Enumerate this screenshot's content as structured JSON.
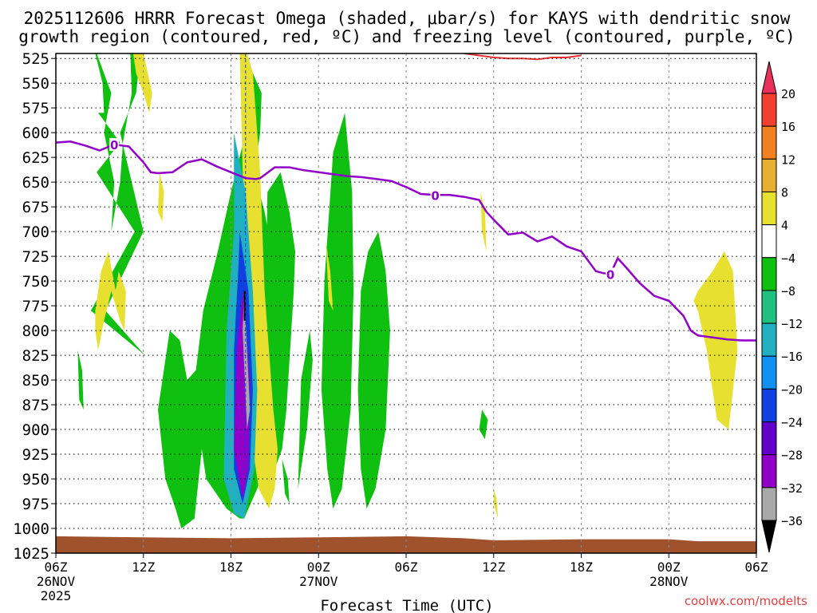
{
  "chart_data": {
    "type": "heatmap",
    "title_line1": "2025112606 HRRR Forecast Omega (shaded, μbar/s) for KAYS with dendritic snow",
    "title_line2": "growth region (contoured, red, ºC) and freezing level (contoured, purple, ºC)",
    "xlabel": "Forecast Time (UTC)",
    "credit": "coolwx.com/modelts",
    "y_ticks": [
      525,
      550,
      575,
      600,
      625,
      650,
      675,
      700,
      725,
      750,
      775,
      800,
      825,
      850,
      875,
      900,
      925,
      950,
      975,
      1000,
      1025
    ],
    "ylim": [
      520,
      1025
    ],
    "xlim": [
      0,
      48
    ],
    "x_ticks": [
      {
        "hour": 0,
        "label": "06Z",
        "date": "26NOV",
        "year": "2025"
      },
      {
        "hour": 6,
        "label": "12Z",
        "date": "",
        "year": ""
      },
      {
        "hour": 12,
        "label": "18Z",
        "date": "",
        "year": ""
      },
      {
        "hour": 18,
        "label": "00Z",
        "date": "27NOV",
        "year": ""
      },
      {
        "hour": 24,
        "label": "06Z",
        "date": "",
        "year": ""
      },
      {
        "hour": 30,
        "label": "12Z",
        "date": "",
        "year": ""
      },
      {
        "hour": 36,
        "label": "18Z",
        "date": "",
        "year": ""
      },
      {
        "hour": 42,
        "label": "00Z",
        "date": "28NOV",
        "year": ""
      },
      {
        "hour": 48,
        "label": "06Z",
        "date": "",
        "year": ""
      }
    ],
    "colorbar": {
      "labels": [
        "20",
        "16",
        "12",
        "8",
        "4",
        "−4",
        "−8",
        "−12",
        "−16",
        "−20",
        "−24",
        "−28",
        "−32",
        "−36"
      ],
      "colors": [
        "#e8305a",
        "#f04030",
        "#f08020",
        "#e8b030",
        "#e8e030",
        "#ffffff",
        "#10c010",
        "#20c080",
        "#20b0c0",
        "#1090f0",
        "#1040e0",
        "#6000c8",
        "#9000c8",
        "#a8a8a8",
        "#000000"
      ]
    },
    "freezing_level": {
      "label": "0",
      "label_hours": [
        4,
        26,
        38
      ],
      "points": [
        [
          0,
          610
        ],
        [
          1,
          609
        ],
        [
          2,
          613
        ],
        [
          3,
          618
        ],
        [
          4,
          612
        ],
        [
          5,
          614
        ],
        [
          6,
          630
        ],
        [
          6.5,
          640
        ],
        [
          7,
          641
        ],
        [
          8,
          640
        ],
        [
          9,
          630
        ],
        [
          10,
          627
        ],
        [
          11,
          634
        ],
        [
          12,
          640
        ],
        [
          13,
          646
        ],
        [
          13.7,
          647
        ],
        [
          14,
          646
        ],
        [
          15,
          635
        ],
        [
          16,
          635
        ],
        [
          17,
          638
        ],
        [
          18,
          640
        ],
        [
          19,
          642
        ],
        [
          20,
          644
        ],
        [
          21,
          645
        ],
        [
          22,
          647
        ],
        [
          23,
          649
        ],
        [
          24,
          655
        ],
        [
          25,
          662
        ],
        [
          26,
          663
        ],
        [
          27,
          663
        ],
        [
          28,
          665
        ],
        [
          29,
          668
        ],
        [
          29.5,
          680
        ],
        [
          30,
          688
        ],
        [
          31,
          703
        ],
        [
          32,
          701
        ],
        [
          33,
          710
        ],
        [
          34,
          705
        ],
        [
          35,
          715
        ],
        [
          36,
          720
        ],
        [
          37,
          740
        ],
        [
          37.5,
          742
        ],
        [
          38,
          743
        ],
        [
          38.5,
          727
        ],
        [
          39,
          735
        ],
        [
          40,
          752
        ],
        [
          41,
          765
        ],
        [
          42,
          770
        ],
        [
          43,
          785
        ],
        [
          43.5,
          800
        ],
        [
          44,
          805
        ],
        [
          45,
          807
        ],
        [
          46,
          809
        ],
        [
          47,
          810
        ],
        [
          48,
          810
        ]
      ]
    },
    "dgz_contour": {
      "points": [
        [
          28,
          520
        ],
        [
          29,
          522
        ],
        [
          30,
          524
        ],
        [
          31,
          525
        ],
        [
          32,
          525
        ],
        [
          33,
          526
        ],
        [
          34,
          524
        ],
        [
          35,
          524
        ],
        [
          36,
          522
        ]
      ]
    },
    "omega_regions": [
      {
        "value": -6,
        "hours": [
          [
            2.7,
            3.2
          ],
          [
            3.3,
            2.9
          ],
          [
            4.4,
            2.8
          ],
          [
            5.4,
            2.4
          ],
          [
            6.1,
            3.4
          ],
          [
            6.0,
            4.4
          ],
          [
            5.5,
            5.8
          ],
          [
            5.1,
            5.2
          ],
          [
            4.6,
            4.4
          ],
          [
            3.8,
            4.0
          ],
          [
            3.3,
            3.8
          ],
          [
            2.8,
            3.6
          ]
        ],
        "pres": [
          [
            520,
            550
          ],
          [
            580,
            580
          ],
          [
            610,
            640
          ],
          [
            700,
            780
          ],
          [
            825,
            780
          ],
          [
            700,
            600
          ],
          [
            560,
            520
          ],
          [
            520,
            560
          ],
          [
            610,
            650
          ],
          [
            700,
            650
          ],
          [
            600,
            560
          ],
          [
            520,
            520
          ]
        ]
      },
      {
        "value": -6,
        "hours": [
          [
            7.0,
            7.5
          ],
          [
            7.8,
            8.5
          ],
          [
            9.0,
            9.6
          ],
          [
            10.1,
            11.1
          ],
          [
            12.0,
            13.0
          ],
          [
            12.6,
            13.1
          ],
          [
            13.5,
            14.1
          ],
          [
            14.0,
            13.6
          ],
          [
            14.3,
            14.8
          ],
          [
            14.8,
            15.4
          ],
          [
            15.0,
            14.5
          ],
          [
            13.8,
            12.9
          ],
          [
            12.6,
            11.7
          ],
          [
            10.3,
            10.0
          ],
          [
            9.5,
            8.6
          ],
          [
            8.2,
            7.5
          ]
        ],
        "pres": [
          [
            880,
            830
          ],
          [
            800,
            810
          ],
          [
            850,
            840
          ],
          [
            780,
            720
          ],
          [
            660,
            600
          ],
          [
            520,
            520
          ],
          [
            540,
            560
          ],
          [
            600,
            640
          ],
          [
            680,
            720
          ],
          [
            760,
            800
          ],
          [
            870,
            930
          ],
          [
            960,
            990
          ],
          [
            990,
            980
          ],
          [
            950,
            920
          ],
          [
            990,
            1000
          ],
          [
            980,
            950
          ]
        ]
      },
      {
        "value": -6,
        "hours": [
          [
            14.5,
            15.4
          ],
          [
            16.0,
            16.4
          ],
          [
            16.3,
            15.8
          ],
          [
            15.5,
            15.0
          ],
          [
            14.6,
            14.4
          ]
        ],
        "pres": [
          [
            660,
            640
          ],
          [
            680,
            720
          ],
          [
            760,
            880
          ],
          [
            920,
            940
          ],
          [
            900,
            760
          ]
        ]
      },
      {
        "value": -6,
        "hours": [
          [
            16.8,
            17.4
          ],
          [
            17.6,
            17.2
          ],
          [
            16.8,
            16.6
          ]
        ],
        "pres": [
          [
            850,
            800
          ],
          [
            830,
            900
          ],
          [
            940,
            960
          ],
          [
            930,
            880
          ]
        ]
      },
      {
        "value": -6,
        "hours": [
          [
            18.4,
            19.0
          ],
          [
            19.8,
            20.3
          ],
          [
            20.4,
            20.2
          ],
          [
            19.6,
            19.0
          ],
          [
            18.6,
            18.2
          ]
        ],
        "pres": [
          [
            750,
            620
          ],
          [
            580,
            660
          ],
          [
            760,
            880
          ],
          [
            960,
            980
          ],
          [
            940,
            860
          ]
        ]
      },
      {
        "value": -6,
        "hours": [
          [
            20.9,
            21.4
          ],
          [
            22.1,
            22.6
          ],
          [
            22.9,
            22.6
          ],
          [
            21.9,
            21.3
          ],
          [
            20.9,
            20.7
          ]
        ],
        "pres": [
          [
            760,
            720
          ],
          [
            700,
            740
          ],
          [
            800,
            900
          ],
          [
            960,
            980
          ],
          [
            940,
            860
          ]
        ]
      },
      {
        "value": -6,
        "hours": [
          [
            1.5,
            1.8
          ],
          [
            1.9,
            1.6
          ]
        ],
        "pres": [
          [
            820,
            840
          ],
          [
            880,
            870
          ]
        ]
      },
      {
        "value": -6,
        "hours": [
          [
            29.2,
            29.6
          ],
          [
            29.4,
            29.0
          ]
        ],
        "pres": [
          [
            880,
            890
          ],
          [
            910,
            900
          ]
        ]
      },
      {
        "value": -6,
        "hours": [
          [
            15.5,
            15.9
          ],
          [
            16.0,
            15.7
          ]
        ],
        "pres": [
          [
            930,
            950
          ],
          [
            975,
            965
          ]
        ]
      }
    ],
    "omega_pos_regions": [
      {
        "value": 6,
        "hours": [
          [
            2.7,
            3.1
          ],
          [
            3.6,
            4.1
          ],
          [
            4.3,
            4.8
          ],
          [
            4.7,
            4.4
          ],
          [
            3.8,
            3.3
          ],
          [
            2.9,
            2.7
          ]
        ],
        "pres": [
          [
            780,
            740
          ],
          [
            720,
            760
          ],
          [
            740,
            760
          ],
          [
            800,
            790
          ],
          [
            760,
            790
          ],
          [
            820,
            800
          ]
        ]
      },
      {
        "value": 6,
        "hours": [
          [
            5.3,
            6.0
          ],
          [
            6.6,
            6.4
          ],
          [
            6.0,
            5.5
          ]
        ],
        "pres": [
          [
            520,
            520
          ],
          [
            560,
            580
          ],
          [
            560,
            540
          ]
        ]
      },
      {
        "value": 6,
        "hours": [
          [
            7.1,
            7.4
          ],
          [
            7.3,
            7.0
          ]
        ],
        "pres": [
          [
            640,
            660
          ],
          [
            690,
            680
          ]
        ]
      },
      {
        "value": 6,
        "hours": [
          [
            12.6,
            13.1
          ],
          [
            13.5,
            13.8
          ],
          [
            14.0,
            14.3
          ],
          [
            14.6,
            14.9
          ],
          [
            15.2,
            15.0
          ],
          [
            14.6,
            13.9
          ],
          [
            13.3,
            12.9
          ]
        ],
        "pres": [
          [
            520,
            520
          ],
          [
            540,
            600
          ],
          [
            640,
            760
          ],
          [
            820,
            880
          ],
          [
            920,
            960
          ],
          [
            980,
            960
          ],
          [
            900,
            700
          ]
        ]
      },
      {
        "value": 6,
        "hours": [
          [
            18.5,
            18.8
          ],
          [
            19.0,
            18.7
          ]
        ],
        "pres": [
          [
            710,
            740
          ],
          [
            780,
            770
          ]
        ]
      },
      {
        "value": 6,
        "hours": [
          [
            29.1,
            29.4
          ],
          [
            29.5,
            29.2
          ]
        ],
        "pres": [
          [
            660,
            680
          ],
          [
            720,
            700
          ]
        ]
      },
      {
        "value": 6,
        "hours": [
          [
            44.0,
            45.0
          ],
          [
            45.8,
            46.4
          ],
          [
            46.7,
            46.1
          ],
          [
            45.3,
            44.6
          ],
          [
            44.0,
            43.7
          ]
        ],
        "pres": [
          [
            760,
            740
          ],
          [
            720,
            740
          ],
          [
            820,
            900
          ],
          [
            890,
            820
          ],
          [
            780,
            770
          ]
        ]
      },
      {
        "value": 6,
        "hours": [
          [
            30.0,
            30.2
          ],
          [
            30.3,
            30.0
          ]
        ],
        "pres": [
          [
            960,
            970
          ],
          [
            990,
            975
          ]
        ]
      }
    ],
    "omega_core": [
      {
        "value": -12,
        "hours": [
          [
            12.2,
            13.0
          ],
          [
            13.5,
            13.8
          ],
          [
            13.6,
            12.9
          ],
          [
            12.2,
            11.5
          ],
          [
            11.7,
            12.2
          ]
        ],
        "pres": [
          [
            600,
            660
          ],
          [
            760,
            860
          ],
          [
            940,
            990
          ],
          [
            985,
            950
          ],
          [
            800,
            700
          ]
        ]
      },
      {
        "value": -20,
        "hours": [
          [
            12.6,
            13.2
          ],
          [
            13.5,
            13.3
          ],
          [
            12.8,
            12.2
          ],
          [
            12.2,
            12.5
          ]
        ],
        "pres": [
          [
            700,
            760
          ],
          [
            860,
            940
          ],
          [
            975,
            940
          ],
          [
            820,
            740
          ]
        ]
      },
      {
        "value": -28,
        "hours": [
          [
            12.8,
            13.3
          ],
          [
            13.2,
            12.8
          ],
          [
            12.2,
            12.4
          ]
        ],
        "pres": [
          [
            760,
            850
          ],
          [
            940,
            970
          ],
          [
            920,
            820
          ]
        ]
      },
      {
        "value": -32,
        "hours": [
          [
            12.9,
            13.3
          ],
          [
            13.1,
            12.8
          ]
        ],
        "pres": [
          [
            760,
            880
          ],
          [
            900,
            800
          ]
        ]
      }
    ]
  }
}
